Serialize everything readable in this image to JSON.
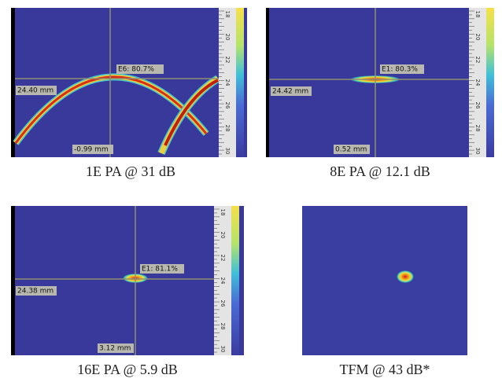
{
  "panels": [
    {
      "caption": "1E PA @ 31 dB",
      "peak_label": "E6: 80.7%",
      "depth_label": "24.40 mm",
      "offset_label": "-0.99 mm"
    },
    {
      "caption": "8E PA @ 12.1 dB",
      "peak_label": "E1: 80.3%",
      "depth_label": "24.42 mm",
      "offset_label": "0.52 mm"
    },
    {
      "caption": "16E PA @ 5.9 dB",
      "peak_label": "E1: 81.1%",
      "depth_label": "24.38 mm",
      "offset_label": "3.12 mm"
    },
    {
      "caption": "TFM @ 43 dB*"
    }
  ],
  "ruler_labels": [
    "18",
    "20",
    "22",
    "24",
    "26",
    "28",
    "30"
  ]
}
